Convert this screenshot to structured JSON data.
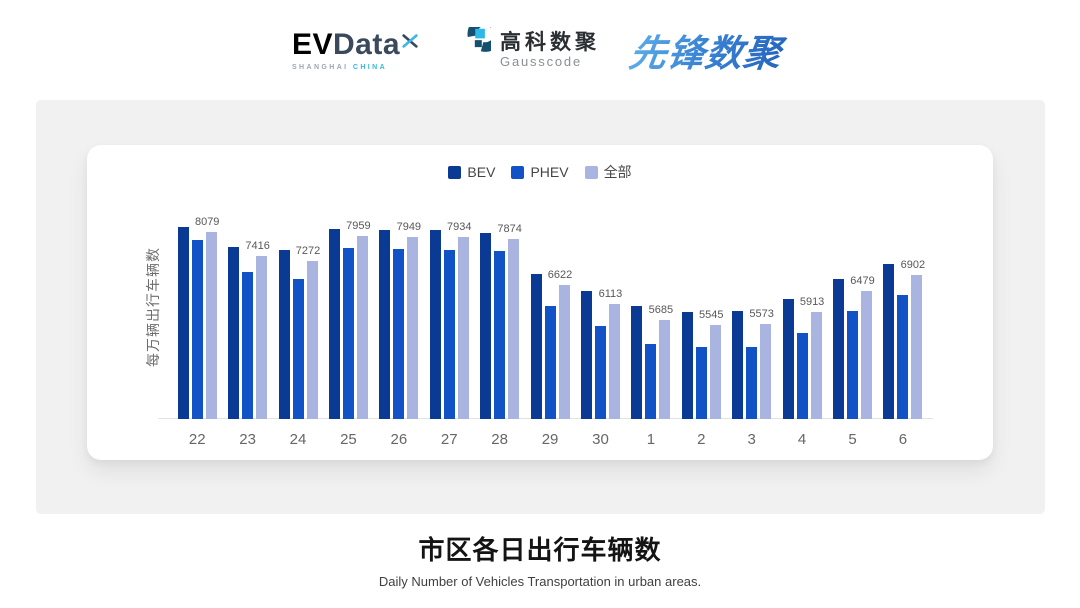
{
  "header": {
    "evdata_logo": {
      "ev": "EV",
      "data": "Data",
      "sub_left": "SHANGHAI",
      "sub_right": "CHINA"
    },
    "gausscode_logo": {
      "name_cn": "高科数聚",
      "name_en": "Gausscode"
    },
    "xianfeng_logo": {
      "text": "先锋数聚"
    }
  },
  "chart_data": {
    "type": "bar",
    "title": "",
    "xlabel": "",
    "ylabel": "每万辆出行车辆数",
    "categories": [
      "22",
      "23",
      "24",
      "25",
      "26",
      "27",
      "28",
      "29",
      "30",
      "1",
      "2",
      "3",
      "4",
      "5",
      "6"
    ],
    "series": [
      {
        "name": "BEV",
        "color": "#0b3a95",
        "labeled": false,
        "values": [
          8200,
          7660,
          7570,
          8140,
          8130,
          8130,
          8050,
          6940,
          6460,
          6060,
          5890,
          5940,
          6250,
          6790,
          7210
        ]
      },
      {
        "name": "PHEV",
        "color": "#1252c7",
        "labeled": false,
        "values": [
          7860,
          7000,
          6790,
          7630,
          7620,
          7590,
          7550,
          6060,
          5510,
          5040,
          4950,
          4940,
          5340,
          5940,
          6350
        ]
      },
      {
        "name": "全部",
        "color": "#aab4e0",
        "labeled": true,
        "values": [
          8079,
          7416,
          7272,
          7959,
          7949,
          7934,
          7874,
          6622,
          6113,
          5685,
          5545,
          5573,
          5913,
          6479,
          6902
        ]
      }
    ],
    "axis_min": 3000,
    "axis_max": 9100,
    "grid": false,
    "legend_position": "top-center"
  },
  "footer": {
    "title": "市区各日出行车辆数",
    "subtitle": "Daily Number of Vehicles Transportation in urban areas."
  },
  "colors": {
    "panel_bg": "#f1f1f2",
    "card_bg": "#ffffff",
    "axis_line": "#e2e2e5",
    "value_label_text": "#585858",
    "axis_text": "#666666",
    "legend_text": "#454545"
  }
}
